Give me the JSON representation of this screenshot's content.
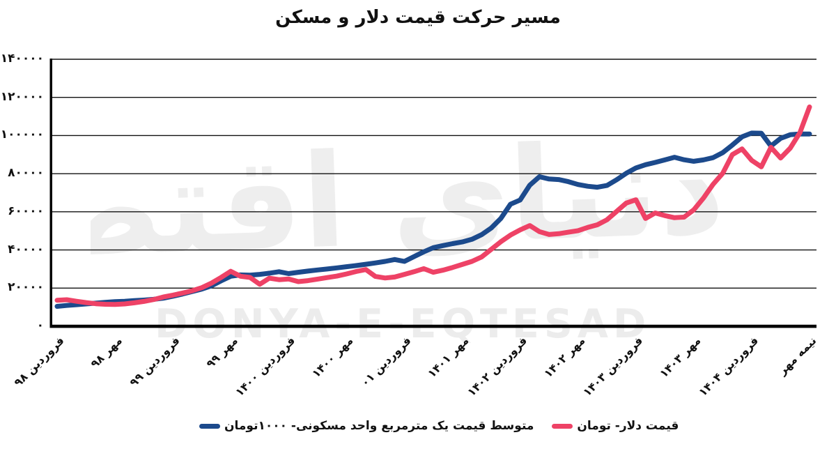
{
  "title": "مسیر حرکت قیمت دلار و مسکن",
  "watermark": {
    "persian_text": "دنیای اقتصاد",
    "latin_text": "DONYA-E-EQTESAD",
    "color": "#ececec"
  },
  "legend": [
    {
      "label": "متوسط قیمت یک مترمربع واحد مسکونی- ۱۰۰۰تومان",
      "color": "#1c4a8c"
    },
    {
      "label": "قیمت دلار- تومان",
      "color": "#ee4266"
    }
  ],
  "chart_data": {
    "type": "line",
    "title": "مسیر حرکت قیمت دلار و مسکن",
    "xlabel": "",
    "ylabel": "",
    "ylim": [
      0,
      140000
    ],
    "grid": "horizontal-black",
    "legend_position": "bottom",
    "x_tick_every": 6,
    "x_tick_labels": [
      "فروردین ۹۸",
      "مهر ۹۸",
      "فروردین ۹۹",
      "مهر ۹۹",
      "فروردین ۱۴۰۰",
      "مهر ۱۴۰۰",
      "فروردین ۰۱",
      "مهر ۱۴۰۱",
      "فروردین ۱۴۰۲",
      "مهر ۱۴۰۲",
      "فروردین ۱۴۰۳",
      "مهر ۱۴۰۳",
      "فروردین ۱۴۰۴",
      "نیمه مهر"
    ],
    "y_ticks": [
      {
        "value": 0,
        "label": "۰"
      },
      {
        "value": 20000,
        "label": "۲۰۰۰۰"
      },
      {
        "value": 40000,
        "label": "۴۰۰۰۰"
      },
      {
        "value": 60000,
        "label": "۶۰۰۰۰"
      },
      {
        "value": 80000,
        "label": "۸۰۰۰۰"
      },
      {
        "value": 100000,
        "label": "۱۰۰۰۰۰"
      },
      {
        "value": 120000,
        "label": "۱۲۰۰۰۰"
      },
      {
        "value": 140000,
        "label": "۱۴۰۰۰۰"
      }
    ],
    "series": [
      {
        "name": "متوسط قیمت یک مترمربع واحد مسکونی- ۱۰۰۰تومان",
        "color": "#1c4a8c",
        "values": [
          10400,
          10900,
          11300,
          11700,
          12100,
          12500,
          12900,
          13100,
          13400,
          13700,
          14100,
          14700,
          15700,
          16900,
          18200,
          19500,
          21200,
          23800,
          26200,
          26900,
          26800,
          27200,
          27800,
          28600,
          27600,
          28300,
          28900,
          29500,
          30000,
          30600,
          31200,
          31800,
          32500,
          33200,
          34000,
          35000,
          34000,
          36500,
          39000,
          41200,
          42300,
          43300,
          44200,
          45600,
          48000,
          51500,
          56500,
          64000,
          66200,
          74000,
          78400,
          77200,
          76900,
          75800,
          74300,
          73400,
          72900,
          73800,
          76800,
          80200,
          83000,
          84700,
          85900,
          87200,
          88600,
          87300,
          86500,
          87200,
          88400,
          91000,
          95000,
          99300,
          101300,
          101200,
          94500,
          98500,
          100400,
          100800,
          100800
        ]
      },
      {
        "name": "قیمت دلار- تومان",
        "color": "#ee4266",
        "values": [
          13600,
          13900,
          13100,
          12400,
          11800,
          11500,
          11400,
          11700,
          12300,
          13000,
          14000,
          15300,
          16300,
          17400,
          18600,
          20200,
          22600,
          25600,
          28800,
          26200,
          25600,
          22000,
          25200,
          24400,
          24800,
          23400,
          23900,
          24700,
          25500,
          26300,
          27400,
          28700,
          29700,
          26100,
          25300,
          25800,
          27200,
          28600,
          30200,
          28300,
          29400,
          30800,
          32400,
          34000,
          36300,
          40300,
          44300,
          47800,
          50500,
          52800,
          49600,
          48100,
          48500,
          49300,
          50100,
          51800,
          53200,
          55800,
          60200,
          64600,
          66300,
          56500,
          59400,
          58000,
          56900,
          57200,
          61000,
          67200,
          74400,
          80200,
          90000,
          93000,
          87000,
          83600,
          93800,
          88200,
          93400,
          101500,
          115000
        ]
      }
    ]
  }
}
